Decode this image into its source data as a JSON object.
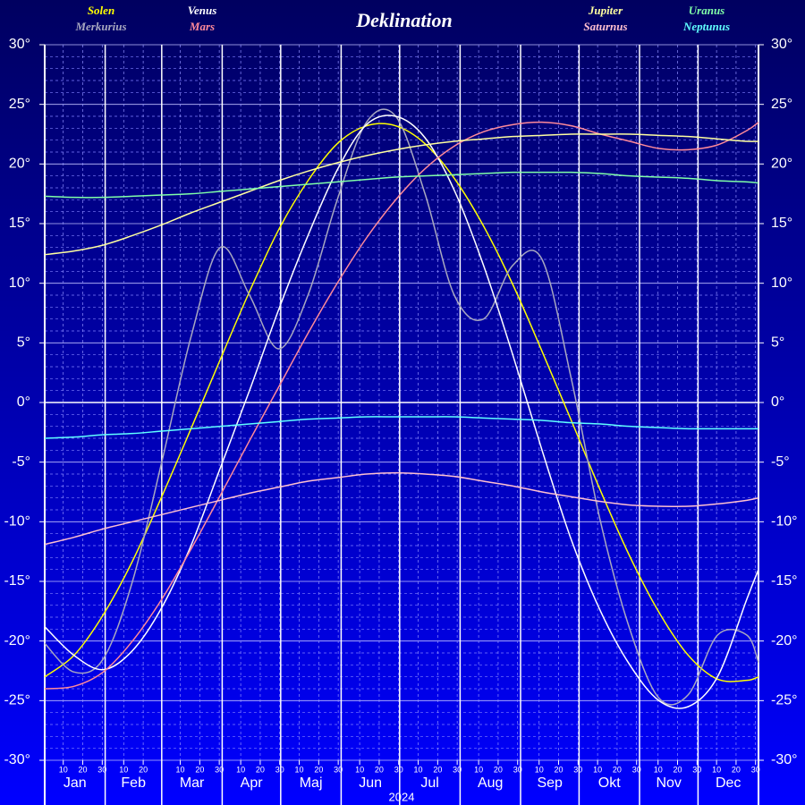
{
  "chart_data": {
    "type": "line",
    "title": "Deklination",
    "xlabel": "2024",
    "xlim": [
      0,
      366
    ],
    "month_labels": [
      "Jan",
      "Feb",
      "Mar",
      "Apr",
      "Maj",
      "Jun",
      "Jul",
      "Aug",
      "Sep",
      "Okt",
      "Nov",
      "Dec"
    ],
    "month_starts": [
      0,
      31,
      60,
      91,
      121,
      152,
      182,
      213,
      244,
      274,
      305,
      335
    ],
    "day_ticks": [
      10,
      20,
      30
    ],
    "ylim": [
      -30,
      30
    ],
    "yticks": [
      {
        "value": -30,
        "label": "-30°"
      },
      {
        "value": -25,
        "label": "-25°"
      },
      {
        "value": -20,
        "label": "-20°"
      },
      {
        "value": -15,
        "label": "-15°"
      },
      {
        "value": -10,
        "label": "-10°"
      },
      {
        "value": -5,
        "label": "-5°"
      },
      {
        "value": 0,
        "label": "0°"
      },
      {
        "value": 5,
        "label": "5°"
      },
      {
        "value": 10,
        "label": "10°"
      },
      {
        "value": 15,
        "label": "15°"
      },
      {
        "value": 20,
        "label": "20°"
      },
      {
        "value": 25,
        "label": "25°"
      },
      {
        "value": 30,
        "label": "30°"
      }
    ],
    "grid": true,
    "x": [
      0,
      15,
      30,
      45,
      60,
      75,
      90,
      105,
      120,
      135,
      150,
      165,
      180,
      195,
      210,
      225,
      240,
      255,
      270,
      285,
      300,
      315,
      330,
      345,
      360,
      366
    ],
    "series": [
      {
        "name": "Solen",
        "color": "#ffff00",
        "values": [
          -23.0,
          -21.2,
          -17.8,
          -13.3,
          -7.9,
          -2.2,
          3.6,
          9.3,
          14.5,
          18.6,
          21.7,
          23.2,
          23.2,
          21.7,
          18.8,
          14.8,
          9.9,
          4.3,
          -1.5,
          -7.4,
          -12.9,
          -17.6,
          -21.2,
          -23.2,
          -23.3,
          -23.0
        ]
      },
      {
        "name": "Merkurius",
        "color": "#a8a8c0",
        "values": [
          -20.2,
          -22.6,
          -21.5,
          -15,
          -5,
          5.5,
          13,
          9,
          4.5,
          9,
          17,
          23.5,
          24,
          17.5,
          9,
          7,
          11.5,
          12,
          2,
          -10,
          -19,
          -24.8,
          -24.5,
          -19.5,
          -19.5,
          -21.8
        ]
      },
      {
        "name": "Venus",
        "color": "#ffffff",
        "values": [
          -18.8,
          -21.2,
          -22.4,
          -20.8,
          -17.2,
          -12,
          -5.5,
          1,
          7.8,
          14,
          19.5,
          23.3,
          24,
          22.2,
          17.8,
          11.5,
          4,
          -4,
          -11.5,
          -17.5,
          -22,
          -25,
          -25.5,
          -23,
          -16.5,
          -14
        ]
      },
      {
        "name": "Mars",
        "color": "#ff8a9a",
        "values": [
          -24,
          -23.8,
          -22.6,
          -20,
          -16.5,
          -12.3,
          -7.8,
          -3.2,
          1.3,
          5.8,
          10,
          13.8,
          17,
          19.6,
          21.5,
          22.7,
          23.3,
          23.5,
          23.2,
          22.5,
          21.9,
          21.3,
          21.2,
          21.6,
          22.8,
          23.5
        ]
      },
      {
        "name": "Jupiter",
        "color": "#ffffa0",
        "values": [
          12.4,
          12.7,
          13.2,
          14,
          14.9,
          15.9,
          16.8,
          17.7,
          18.6,
          19.4,
          20.1,
          20.7,
          21.2,
          21.6,
          21.9,
          22.1,
          22.3,
          22.4,
          22.5,
          22.5,
          22.5,
          22.4,
          22.3,
          22.1,
          21.9,
          21.9
        ]
      },
      {
        "name": "Saturnus",
        "color": "#ffc0d0",
        "values": [
          -11.9,
          -11.3,
          -10.6,
          -10,
          -9.4,
          -8.8,
          -8.2,
          -7.6,
          -7.1,
          -6.6,
          -6.3,
          -6.0,
          -5.9,
          -6.0,
          -6.2,
          -6.6,
          -7.0,
          -7.5,
          -7.9,
          -8.3,
          -8.6,
          -8.7,
          -8.7,
          -8.5,
          -8.2,
          -8.0
        ]
      },
      {
        "name": "Uranus",
        "color": "#80ffa8",
        "values": [
          17.3,
          17.2,
          17.2,
          17.3,
          17.4,
          17.5,
          17.7,
          17.9,
          18.1,
          18.3,
          18.5,
          18.7,
          18.9,
          19.0,
          19.1,
          19.2,
          19.3,
          19.3,
          19.3,
          19.2,
          19.0,
          18.9,
          18.8,
          18.6,
          18.5,
          18.4
        ]
      },
      {
        "name": "Neptunus",
        "color": "#60ffff",
        "values": [
          -3.0,
          -2.9,
          -2.7,
          -2.6,
          -2.4,
          -2.2,
          -2.0,
          -1.8,
          -1.6,
          -1.4,
          -1.3,
          -1.2,
          -1.2,
          -1.2,
          -1.2,
          -1.3,
          -1.4,
          -1.5,
          -1.7,
          -1.8,
          -2.0,
          -2.1,
          -2.2,
          -2.2,
          -2.2,
          -2.2
        ]
      }
    ]
  }
}
